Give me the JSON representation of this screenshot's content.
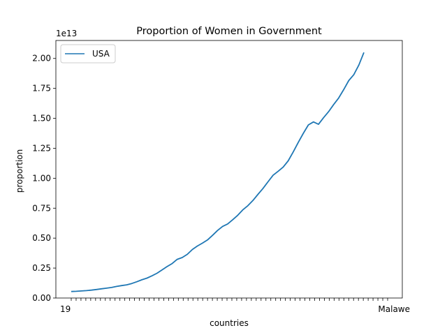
{
  "chart_data": {
    "type": "line",
    "title": "Proportion of Women in Government",
    "xlabel": "countries",
    "ylabel": "proportion",
    "y_offset_label": "1e13",
    "ylim": [
      0,
      2.15
    ],
    "y_ticks": [
      "0.00",
      "0.25",
      "0.50",
      "0.75",
      "1.00",
      "1.25",
      "1.50",
      "1.75",
      "2.00"
    ],
    "y_tick_values": [
      0,
      0.25,
      0.5,
      0.75,
      1.0,
      1.25,
      1.5,
      1.75,
      2.0
    ],
    "grid": false,
    "legend": {
      "placement": "upper-left",
      "entries": [
        "USA"
      ]
    },
    "x_tick_labels_visible": [
      "19",
      "Malawe"
    ],
    "series": [
      {
        "name": "USA",
        "color": "#1f77b4",
        "y_scale": "1e13",
        "values": [
          0.054,
          0.056,
          0.059,
          0.062,
          0.066,
          0.071,
          0.077,
          0.082,
          0.088,
          0.097,
          0.104,
          0.11,
          0.121,
          0.136,
          0.152,
          0.166,
          0.185,
          0.207,
          0.235,
          0.263,
          0.288,
          0.323,
          0.338,
          0.365,
          0.405,
          0.434,
          0.458,
          0.485,
          0.523,
          0.564,
          0.598,
          0.618,
          0.654,
          0.691,
          0.736,
          0.77,
          0.814,
          0.865,
          0.914,
          0.97,
          1.025,
          1.058,
          1.093,
          1.145,
          1.22,
          1.3,
          1.375,
          1.445,
          1.47,
          1.45,
          1.505,
          1.555,
          1.615,
          1.67,
          1.74,
          1.815,
          1.865,
          1.945,
          2.05
        ]
      }
    ]
  }
}
